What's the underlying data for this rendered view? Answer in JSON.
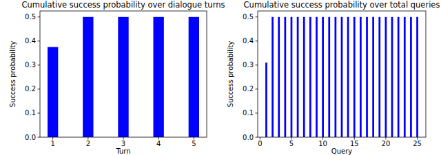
{
  "chart_data": [
    {
      "type": "bar",
      "title": "Cumulative success probability over dialogue turns",
      "x_label": "Turn",
      "y_label": "Success probability",
      "x": [
        1,
        2,
        3,
        4,
        5
      ],
      "values": [
        0.375,
        0.5,
        0.5,
        0.5,
        0.5
      ],
      "color": "#0000ff",
      "xlim": [
        0.635,
        5.365
      ],
      "ylim": [
        0,
        0.525
      ],
      "xticks": [
        1,
        2,
        3,
        4,
        5
      ],
      "yticks": [
        {
          "value": 0,
          "label": "0.0"
        },
        {
          "value": 0.1,
          "label": "0.1"
        },
        {
          "value": 0.2,
          "label": "0.2"
        },
        {
          "value": 0.3,
          "label": "0.3"
        },
        {
          "value": 0.4,
          "label": "0.4"
        },
        {
          "value": 0.5,
          "label": "0.5"
        }
      ],
      "grid": false
    },
    {
      "type": "bar",
      "title": "Cumulative success probability over total queries",
      "x_label": "Query",
      "y_label": "Success probability",
      "x": [
        1,
        2,
        3,
        4,
        5,
        6,
        7,
        8,
        9,
        10,
        11,
        12,
        13,
        14,
        15,
        16,
        17,
        18,
        19,
        20,
        21,
        22,
        23,
        24,
        25
      ],
      "values": [
        0.31,
        0.5,
        0.5,
        0.5,
        0.5,
        0.5,
        0.5,
        0.5,
        0.5,
        0.5,
        0.5,
        0.5,
        0.5,
        0.5,
        0.5,
        0.5,
        0.5,
        0.5,
        0.5,
        0.5,
        0.5,
        0.5,
        0.5,
        0.5,
        0.5
      ],
      "color": "#0000ff",
      "xlim": [
        -0.365,
        26.365
      ],
      "ylim": [
        0,
        0.525
      ],
      "xticks": [
        0,
        5,
        10,
        15,
        20,
        25
      ],
      "yticks": [
        {
          "value": 0,
          "label": "0.0"
        },
        {
          "value": 0.1,
          "label": "0.1"
        },
        {
          "value": 0.2,
          "label": "0.2"
        },
        {
          "value": 0.3,
          "label": "0.3"
        },
        {
          "value": 0.4,
          "label": "0.4"
        },
        {
          "value": 0.5,
          "label": "0.5"
        }
      ],
      "grid": false
    }
  ]
}
